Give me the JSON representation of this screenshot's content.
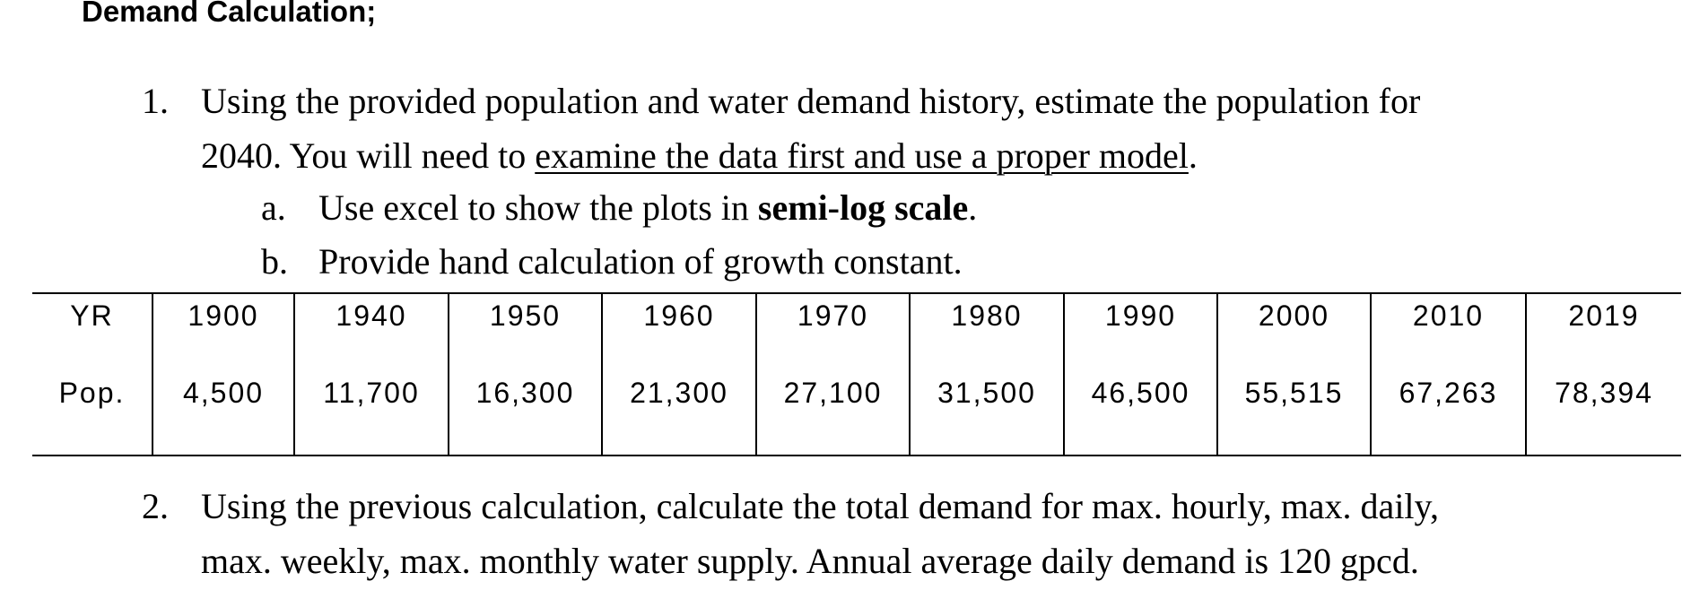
{
  "heading": "Demand Calculation;",
  "item1": {
    "number": "1.",
    "text": "Using the provided population and water demand history, estimate the population for",
    "line2_start": "2040. You will need to ",
    "line2_underlined": "examine the data first and use a proper model",
    "line2_end": ".",
    "sub_a": {
      "letter": "a.",
      "text": "Use excel to show the plots in ",
      "bold": "semi-log scale",
      "end": "."
    },
    "sub_b": {
      "letter": "b.",
      "text": "Provide hand calculation of growth constant."
    }
  },
  "table": {
    "rows": [
      [
        "YR",
        "1900",
        "1940",
        "1950",
        "1960",
        "1970",
        "1980",
        "1990",
        "2000",
        "2010",
        "2019"
      ],
      [
        "Pop.",
        "4,500",
        "11,700",
        "16,300",
        "21,300",
        "27,100",
        "31,500",
        "46,500",
        "55,515",
        "67,263",
        "78,394"
      ]
    ]
  },
  "item2": {
    "number": "2.",
    "line1": "Using the previous calculation, calculate the total demand for max. hourly, max. daily,",
    "line2": "max. weekly, max. monthly water supply. Annual average daily demand is 120 gpcd."
  }
}
